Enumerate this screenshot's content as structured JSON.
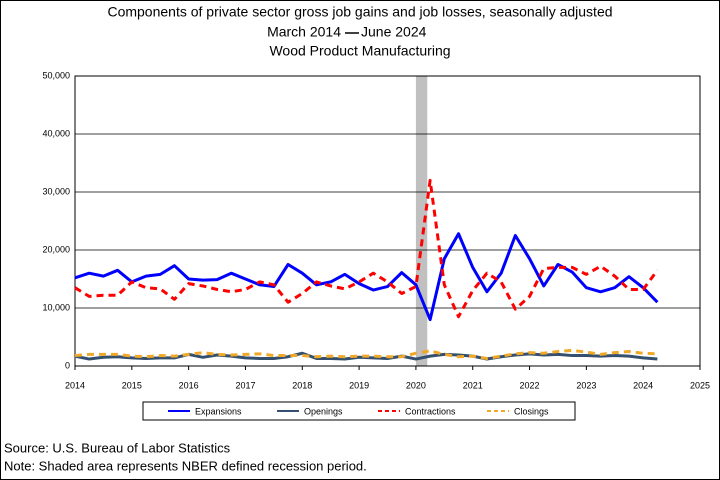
{
  "chart_data": {
    "type": "line",
    "title": "Components of private sector gross job gains and job losses, seasonally adjusted",
    "subtitle_start": "March 2014",
    "subtitle_end": "June 2024",
    "subtitle2": "Wood Product Manufacturing",
    "source": "Source: U.S. Bureau of Labor Statistics",
    "note": "Note: Shaded area represents NBER defined recession period.",
    "x": [
      2014,
      2014.25,
      2014.5,
      2014.75,
      2015,
      2015.25,
      2015.5,
      2015.75,
      2016,
      2016.25,
      2016.5,
      2016.75,
      2017,
      2017.25,
      2017.5,
      2017.75,
      2018,
      2018.25,
      2018.5,
      2018.75,
      2019,
      2019.25,
      2019.5,
      2019.75,
      2020,
      2020.25,
      2020.5,
      2020.75,
      2021,
      2021.25,
      2021.5,
      2021.75,
      2022,
      2022.25,
      2022.5,
      2022.75,
      2023,
      2023.25,
      2023.5,
      2023.75,
      2024,
      2024.25
    ],
    "recession": [
      2020.0,
      2020.2
    ],
    "xlim": [
      2014,
      2025
    ],
    "xticks": [
      2014,
      2015,
      2016,
      2017,
      2018,
      2019,
      2020,
      2021,
      2022,
      2023,
      2024,
      2025
    ],
    "ylim": [
      0,
      50000
    ],
    "yticks": [
      0,
      {
        "value": 10000,
        "label": "10,000"
      },
      {
        "value": 20000,
        "label": "20,000"
      },
      {
        "value": 30000,
        "label": "30,000"
      },
      {
        "value": 40000,
        "label": "40,000"
      },
      {
        "value": 50000,
        "label": "50,000"
      }
    ],
    "grid": true,
    "series": [
      {
        "name": "Expansions",
        "color": "#0000ff",
        "dashed": false,
        "values": [
          15200,
          16000,
          15500,
          16500,
          14500,
          15500,
          15800,
          17300,
          15000,
          14800,
          14900,
          16000,
          15000,
          14000,
          13700,
          17500,
          16000,
          14000,
          14500,
          15800,
          14200,
          13100,
          13700,
          16100,
          14000,
          8000,
          18500,
          22800,
          17000,
          12800,
          16000,
          22500,
          18500,
          13800,
          17500,
          16200,
          13500,
          12800,
          13500,
          15400,
          13500,
          11000
        ]
      },
      {
        "name": "Openings",
        "color": "#34506e",
        "dashed": false,
        "values": [
          1700,
          1200,
          1500,
          1600,
          1400,
          1300,
          1400,
          1400,
          2000,
          1500,
          1900,
          1700,
          1400,
          1300,
          1300,
          1600,
          2200,
          1300,
          1300,
          1200,
          1500,
          1400,
          1300,
          1700,
          1200,
          1700,
          2000,
          1900,
          1700,
          1200,
          1600,
          1900,
          2100,
          1900,
          2000,
          1800,
          1800,
          1700,
          1800,
          1700,
          1400,
          1200
        ]
      },
      {
        "name": "Contractions",
        "color": "#ff0000",
        "dashed": true,
        "values": [
          13500,
          12000,
          12200,
          12200,
          14500,
          13500,
          13300,
          11500,
          14200,
          13800,
          13200,
          12800,
          13200,
          14500,
          14000,
          11000,
          12500,
          14500,
          13800,
          13300,
          14500,
          16000,
          14500,
          12500,
          13700,
          32000,
          14000,
          8500,
          13000,
          16000,
          14500,
          9800,
          12000,
          16800,
          17000,
          17000,
          15800,
          17200,
          15500,
          13200,
          13200,
          16500
        ]
      },
      {
        "name": "Closings",
        "color": "#f0a828",
        "dashed": true,
        "values": [
          1800,
          2000,
          2000,
          2000,
          1700,
          1600,
          1800,
          1700,
          2000,
          2300,
          2000,
          1900,
          2000,
          2100,
          1800,
          1800,
          1800,
          1600,
          1700,
          1600,
          1700,
          1700,
          1600,
          1600,
          2200,
          2600,
          2000,
          1600,
          1700,
          1300,
          1700,
          2100,
          2300,
          2200,
          2500,
          2700,
          2400,
          2000,
          2300,
          2500,
          2200,
          2100
        ]
      }
    ]
  }
}
